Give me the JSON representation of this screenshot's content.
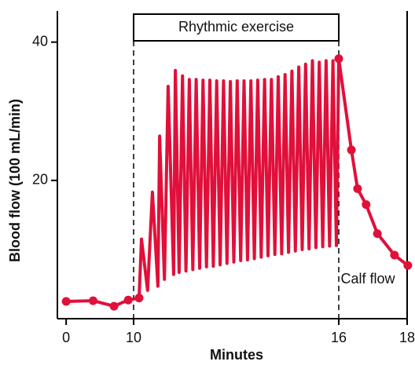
{
  "chart_data": {
    "type": "line",
    "xlabel": "Minutes",
    "ylabel": "Blood flow (100 mL/min)",
    "xlim": [
      -1.3,
      18
    ],
    "xticks": [
      0,
      10,
      16,
      18
    ],
    "ylim": [
      0,
      44.5
    ],
    "yticks": [
      20,
      40
    ],
    "color": "#e0103a",
    "exercise": {
      "label": "Rhythmic exercise",
      "start": 10,
      "end": 16
    },
    "annotation": "Calf flow",
    "series": [
      {
        "marker": true,
        "x": [
          0,
          4,
          7.1,
          9.2,
          10.16
        ],
        "values": [
          2.5,
          2.6,
          1.8,
          2.7,
          3.0
        ]
      },
      {
        "marker": false,
        "x": [
          10.23,
          10.41,
          10.55,
          10.71,
          10.76,
          10.9,
          11.01,
          11.17,
          11.22,
          11.33,
          11.43,
          11.53,
          11.63,
          11.73,
          11.83,
          11.93,
          12.03,
          12.13,
          12.23,
          12.33,
          12.43,
          12.53,
          12.63,
          12.73,
          12.83,
          12.93,
          13.03,
          13.13,
          13.23,
          13.33,
          13.43,
          13.53,
          13.63,
          13.73,
          13.83,
          13.93,
          14.03,
          14.13,
          14.23,
          14.33,
          14.43,
          14.53,
          14.63,
          14.73,
          14.83,
          14.93,
          15.03,
          15.13,
          15.23,
          15.33,
          15.43,
          15.53,
          15.63,
          15.73,
          15.83,
          15.93
        ],
        "values": [
          11.5,
          4.1,
          18.3,
          4.7,
          26.4,
          5.7,
          33.6,
          6.4,
          35.9,
          6.7,
          35.1,
          6.9,
          34.6,
          7.1,
          34.6,
          7.3,
          34.5,
          7.5,
          34.5,
          7.6,
          34.4,
          7.8,
          34.4,
          8.0,
          34.3,
          8.2,
          34.4,
          8.4,
          34.4,
          8.5,
          34.4,
          8.7,
          34.5,
          8.9,
          34.6,
          9.1,
          34.6,
          9.3,
          35.0,
          9.4,
          35.3,
          9.6,
          35.8,
          9.8,
          36.4,
          10.0,
          36.8,
          10.1,
          37.3,
          10.3,
          37.1,
          10.4,
          37.3,
          10.5,
          37.3,
          10.6
        ]
      },
      {
        "marker": true,
        "x": [
          16,
          16.37,
          16.55,
          16.8,
          17.13,
          17.63,
          18.02
        ],
        "values": [
          37.6,
          24.4,
          18.8,
          16.5,
          12.3,
          9.2,
          7.7
        ]
      }
    ]
  }
}
